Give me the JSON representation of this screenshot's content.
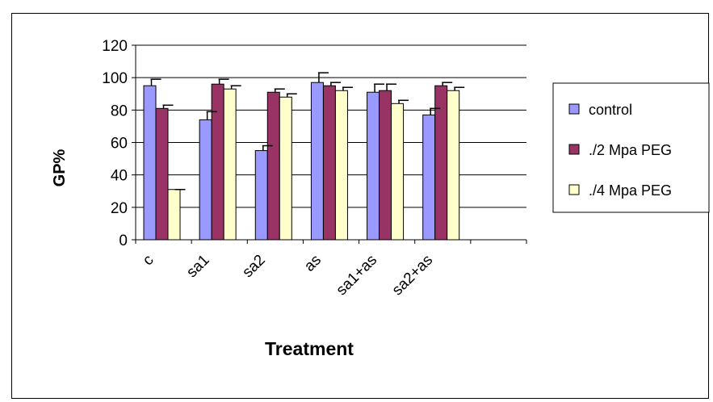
{
  "chart_data": {
    "type": "bar",
    "title": "",
    "xlabel": "Treatment",
    "ylabel": "GP%",
    "ylim": [
      0,
      120
    ],
    "yticks": [
      "0",
      "20",
      "40",
      "60",
      "80",
      "100",
      "120"
    ],
    "categories": [
      "c",
      "sa1",
      "sa2",
      "as",
      "sa1+as",
      "sa2+as"
    ],
    "series": [
      {
        "name": "control",
        "values": [
          95,
          74,
          55,
          97,
          91,
          77
        ],
        "errors": [
          4,
          5,
          3,
          6,
          5,
          4
        ]
      },
      {
        "name": "./2 Mpa PEG",
        "values": [
          81,
          96,
          91,
          95,
          92,
          95
        ],
        "errors": [
          2,
          3,
          2,
          2,
          4,
          2
        ]
      },
      {
        "name": "./4 Mpa PEG",
        "values": [
          31,
          93,
          88,
          92,
          84,
          92
        ],
        "errors": [
          0,
          2,
          2,
          2,
          2,
          2
        ]
      }
    ],
    "colors": [
      "#9999ff",
      "#993366",
      "#ffffcc"
    ],
    "grid": true,
    "legend": "right"
  }
}
